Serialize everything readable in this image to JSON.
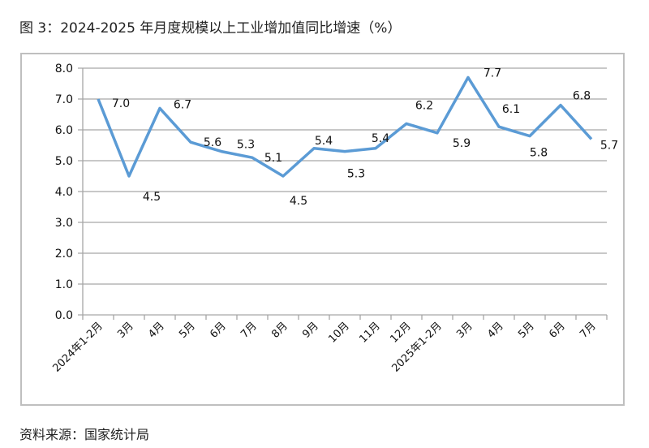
{
  "title": "图 3：2024-2025 年月度规模以上工业增加值同比增速（%）",
  "source": "资料来源：国家统计局",
  "chart_data": {
    "type": "line",
    "title": "图 3：2024-2025 年月度规模以上工业增加值同比增速（%）",
    "xlabel": "",
    "ylabel": "",
    "categories": [
      "2024年1-2月",
      "3月",
      "4月",
      "5月",
      "6月",
      "7月",
      "8月",
      "9月",
      "10月",
      "11月",
      "12月",
      "2025年1-2月",
      "3月",
      "4月",
      "5月",
      "6月",
      "7月"
    ],
    "values": [
      7.0,
      4.5,
      6.7,
      5.6,
      5.3,
      5.1,
      4.5,
      5.4,
      5.3,
      5.4,
      6.2,
      5.9,
      7.7,
      6.1,
      5.8,
      6.8,
      5.7
    ],
    "ylim": [
      0,
      8
    ],
    "yticks": [
      "0.0",
      "1.0",
      "2.0",
      "3.0",
      "4.0",
      "5.0",
      "6.0",
      "7.0",
      "8.0"
    ],
    "grid": true,
    "legend": "none",
    "line_color": "#5b9bd5",
    "data_labels": true
  }
}
